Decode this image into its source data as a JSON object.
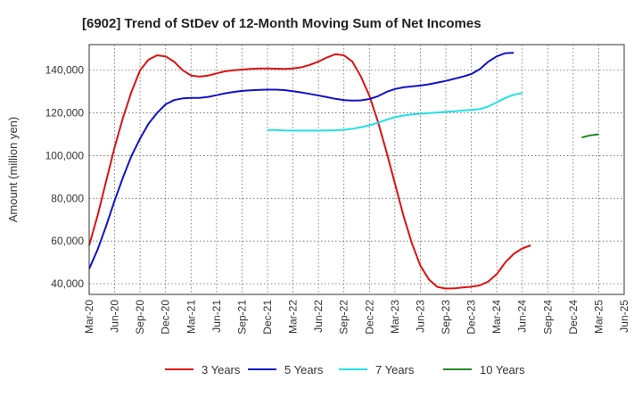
{
  "chart_data": {
    "type": "line",
    "title": "[6902]  Trend of StDev of 12-Month Moving Sum of Net Incomes",
    "xlabel": "",
    "ylabel": "Amount (million yen)",
    "ylim": [
      35000,
      152000
    ],
    "y_ticks": [
      40000,
      60000,
      80000,
      100000,
      120000,
      140000
    ],
    "y_tick_labels": [
      "40,000",
      "60,000",
      "80,000",
      "100,000",
      "120,000",
      "140,000"
    ],
    "x_ticks": [
      "Mar-20",
      "Jun-20",
      "Sep-20",
      "Dec-20",
      "Mar-21",
      "Jun-21",
      "Sep-21",
      "Dec-21",
      "Mar-22",
      "Jun-22",
      "Sep-22",
      "Dec-22",
      "Mar-23",
      "Jun-23",
      "Sep-23",
      "Dec-23",
      "Mar-24",
      "Jun-24",
      "Sep-24",
      "Dec-24",
      "Mar-25",
      "Jun-25"
    ],
    "grid": true,
    "legend_position": "bottom",
    "series": [
      {
        "name": "3 Years",
        "color": "#dd1111",
        "start": "Mar-20",
        "values": [
          58000,
          72000,
          88000,
          104000,
          118000,
          130000,
          140000,
          145000,
          147000,
          146500,
          144000,
          140000,
          137500,
          137000,
          137500,
          138500,
          139500,
          140000,
          140300,
          140600,
          140800,
          140800,
          140700,
          140600,
          140800,
          141400,
          142500,
          144000,
          146000,
          147500,
          147000,
          144000,
          137000,
          128000,
          116000,
          102000,
          87000,
          72000,
          59000,
          48500,
          42000,
          38500,
          37700,
          37800,
          38200,
          38600,
          39200,
          41000,
          44500,
          50000,
          54000,
          56500,
          58000
        ]
      },
      {
        "name": "5 Years",
        "color": "#1111cc",
        "start": "Mar-20",
        "values": [
          47000,
          56000,
          67000,
          79000,
          90000,
          100000,
          108000,
          115000,
          120000,
          124000,
          126000,
          126800,
          127000,
          127000,
          127500,
          128300,
          129200,
          129800,
          130300,
          130600,
          130800,
          130900,
          130900,
          130700,
          130200,
          129600,
          128900,
          128200,
          127400,
          126600,
          126000,
          125800,
          125900,
          126500,
          127800,
          129800,
          131200,
          132000,
          132400,
          132800,
          133400,
          134200,
          135000,
          136000,
          137000,
          138200,
          140500,
          144000,
          146500,
          148000,
          148200
        ]
      },
      {
        "name": "7 Years",
        "color": "#22e0e8",
        "start": "Dec-21",
        "values": [
          112000,
          112000,
          111800,
          111700,
          111700,
          111700,
          111700,
          111800,
          111900,
          112100,
          112600,
          113300,
          114200,
          115400,
          116800,
          118000,
          118800,
          119300,
          119600,
          119900,
          120200,
          120500,
          120800,
          121100,
          121400,
          121800,
          123000,
          125000,
          127000,
          128500,
          129300
        ]
      },
      {
        "name": "10 Years",
        "color": "#228822",
        "start": "Jan-25",
        "values": [
          108500,
          109500,
          110000
        ]
      }
    ]
  }
}
